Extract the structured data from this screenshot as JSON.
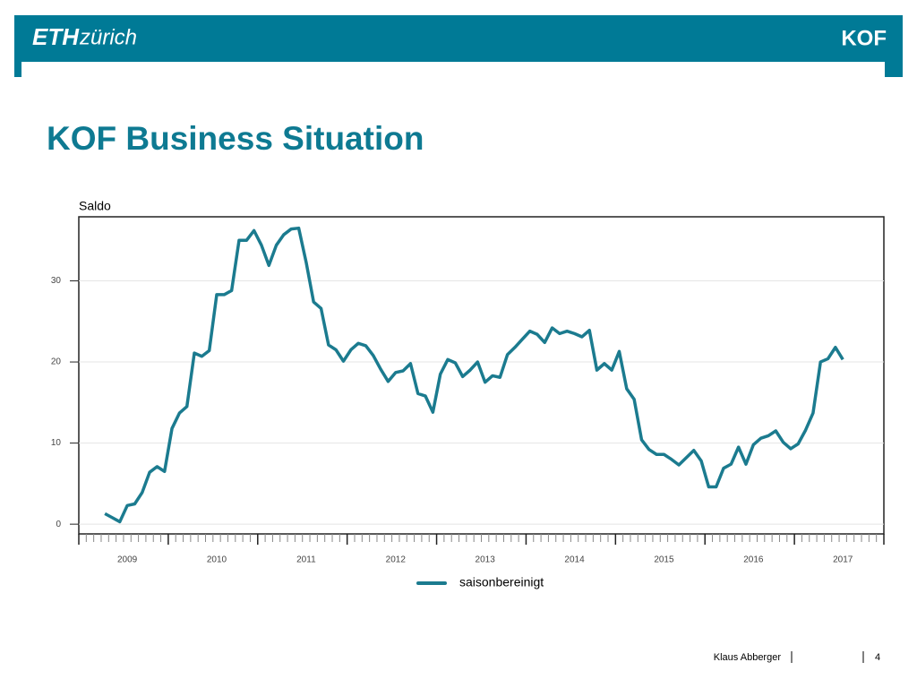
{
  "header": {
    "logo_left": "ETH",
    "logo_left_suffix": "zürich",
    "logo_right": "KOF"
  },
  "footer": {
    "author": "Klaus Abberger",
    "page": "4"
  },
  "chart_data": {
    "type": "line",
    "title": "KOF Business Situation",
    "y_label": "Saldo",
    "categories": [
      null,
      null,
      null,
      null,
      null,
      null,
      "2009",
      null,
      null,
      null,
      null,
      null,
      null,
      null,
      null,
      null,
      null,
      null,
      "2010",
      null,
      null,
      null,
      null,
      null,
      null,
      null,
      null,
      null,
      null,
      null,
      "2011",
      null,
      null,
      null,
      null,
      null,
      null,
      null,
      null,
      null,
      null,
      null,
      "2012",
      null,
      null,
      null,
      null,
      null,
      null,
      null,
      null,
      null,
      null,
      null,
      "2013",
      null,
      null,
      null,
      null,
      null,
      null,
      null,
      null,
      null,
      null,
      null,
      "2014",
      null,
      null,
      null,
      null,
      null,
      null,
      null,
      null,
      null,
      null,
      null,
      "2015",
      null,
      null,
      null,
      null,
      null,
      null,
      null,
      null,
      null,
      null,
      null,
      "2016",
      null,
      null,
      null,
      null,
      null,
      null,
      null,
      null,
      null,
      null,
      null,
      "2017",
      null,
      null,
      null,
      null,
      null
    ],
    "series": [
      {
        "name": "saisonbereinigt",
        "color": "#1b7b8f",
        "values": [
          null,
          null,
          null,
          1.3,
          0.8,
          0.3,
          2.3,
          2.5,
          3.9,
          6.4,
          7.1,
          6.5,
          11.8,
          13.7,
          14.5,
          21.1,
          20.7,
          21.4,
          28.3,
          28.3,
          28.8,
          35.0,
          35.0,
          36.2,
          34.4,
          31.9,
          34.4,
          35.7,
          36.4,
          36.5,
          32.3,
          27.4,
          26.6,
          22.1,
          21.5,
          20.1,
          21.5,
          22.3,
          22.0,
          20.8,
          19.1,
          17.6,
          18.7,
          18.9,
          19.8,
          16.1,
          15.8,
          13.8,
          18.5,
          20.3,
          19.9,
          18.2,
          19.0,
          20.0,
          17.5,
          18.3,
          18.1,
          20.9,
          21.8,
          22.8,
          23.8,
          23.4,
          22.4,
          24.2,
          23.5,
          23.8,
          23.5,
          23.1,
          23.9,
          19.0,
          19.8,
          19.0,
          21.3,
          16.7,
          15.4,
          10.4,
          9.2,
          8.6,
          8.6,
          8.0,
          7.3,
          8.2,
          9.1,
          7.8,
          4.6,
          4.6,
          6.9,
          7.4,
          9.5,
          7.4,
          9.8,
          10.6,
          10.9,
          11.5,
          10.1,
          9.3,
          9.9,
          11.6,
          13.7,
          20.0,
          20.4,
          21.8,
          20.3,
          null,
          null,
          null,
          null,
          null
        ]
      }
    ],
    "ylim": [
      -1.2,
      37.9
    ],
    "yticks": [
      0,
      10,
      20,
      30
    ],
    "grid": true,
    "legend": "bottom"
  }
}
